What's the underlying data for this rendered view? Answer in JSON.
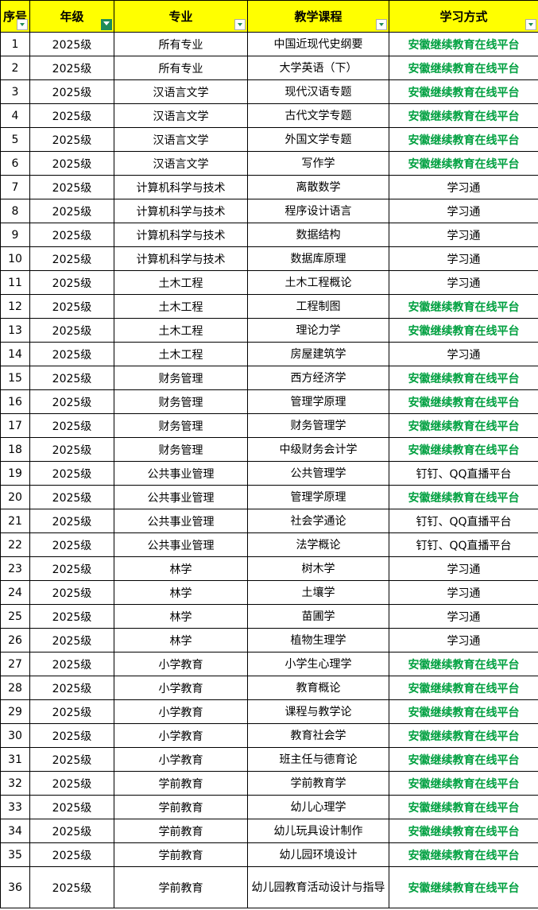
{
  "headers": [
    "序号",
    "年级",
    "专业",
    "教学课程",
    "学习方式"
  ],
  "filter_active_column": "年级",
  "accent_green": "#00a040",
  "header_bg": "#ffff00",
  "rows": [
    [
      "1",
      "2025级",
      "所有专业",
      "中国近现代史纲要",
      "安徽继续教育在线平台"
    ],
    [
      "2",
      "2025级",
      "所有专业",
      "大学英语（下）",
      "安徽继续教育在线平台"
    ],
    [
      "3",
      "2025级",
      "汉语言文学",
      "现代汉语专题",
      "安徽继续教育在线平台"
    ],
    [
      "4",
      "2025级",
      "汉语言文学",
      "古代文学专题",
      "安徽继续教育在线平台"
    ],
    [
      "5",
      "2025级",
      "汉语言文学",
      "外国文学专题",
      "安徽继续教育在线平台"
    ],
    [
      "6",
      "2025级",
      "汉语言文学",
      "写作学",
      "安徽继续教育在线平台"
    ],
    [
      "7",
      "2025级",
      "计算机科学与技术",
      "离散数学",
      "学习通"
    ],
    [
      "8",
      "2025级",
      "计算机科学与技术",
      "程序设计语言",
      "学习通"
    ],
    [
      "9",
      "2025级",
      "计算机科学与技术",
      "数据结构",
      "学习通"
    ],
    [
      "10",
      "2025级",
      "计算机科学与技术",
      "数据库原理",
      "学习通"
    ],
    [
      "11",
      "2025级",
      "土木工程",
      "土木工程概论",
      "学习通"
    ],
    [
      "12",
      "2025级",
      "土木工程",
      "工程制图",
      "安徽继续教育在线平台"
    ],
    [
      "13",
      "2025级",
      "土木工程",
      "理论力学",
      "安徽继续教育在线平台"
    ],
    [
      "14",
      "2025级",
      "土木工程",
      "房屋建筑学",
      "学习通"
    ],
    [
      "15",
      "2025级",
      "财务管理",
      "西方经济学",
      "安徽继续教育在线平台"
    ],
    [
      "16",
      "2025级",
      "财务管理",
      "管理学原理",
      "安徽继续教育在线平台"
    ],
    [
      "17",
      "2025级",
      "财务管理",
      "财务管理学",
      "安徽继续教育在线平台"
    ],
    [
      "18",
      "2025级",
      "财务管理",
      "中级财务会计学",
      "安徽继续教育在线平台"
    ],
    [
      "19",
      "2025级",
      "公共事业管理",
      "公共管理学",
      "钉钉、QQ直播平台"
    ],
    [
      "20",
      "2025级",
      "公共事业管理",
      "管理学原理",
      "安徽继续教育在线平台"
    ],
    [
      "21",
      "2025级",
      "公共事业管理",
      "社会学通论",
      "钉钉、QQ直播平台"
    ],
    [
      "22",
      "2025级",
      "公共事业管理",
      "法学概论",
      "钉钉、QQ直播平台"
    ],
    [
      "23",
      "2025级",
      "林学",
      "树木学",
      "学习通"
    ],
    [
      "24",
      "2025级",
      "林学",
      "土壤学",
      "学习通"
    ],
    [
      "25",
      "2025级",
      "林学",
      "苗圃学",
      "学习通"
    ],
    [
      "26",
      "2025级",
      "林学",
      "植物生理学",
      "学习通"
    ],
    [
      "27",
      "2025级",
      "小学教育",
      "小学生心理学",
      "安徽继续教育在线平台"
    ],
    [
      "28",
      "2025级",
      "小学教育",
      "教育概论",
      "安徽继续教育在线平台"
    ],
    [
      "29",
      "2025级",
      "小学教育",
      "课程与教学论",
      "安徽继续教育在线平台"
    ],
    [
      "30",
      "2025级",
      "小学教育",
      "教育社会学",
      "安徽继续教育在线平台"
    ],
    [
      "31",
      "2025级",
      "小学教育",
      "班主任与德育论",
      "安徽继续教育在线平台"
    ],
    [
      "32",
      "2025级",
      "学前教育",
      "学前教育学",
      "安徽继续教育在线平台"
    ],
    [
      "33",
      "2025级",
      "学前教育",
      "幼儿心理学",
      "安徽继续教育在线平台"
    ],
    [
      "34",
      "2025级",
      "学前教育",
      "幼儿玩具设计制作",
      "安徽继续教育在线平台"
    ],
    [
      "35",
      "2025级",
      "学前教育",
      "幼儿园环境设计",
      "安徽继续教育在线平台"
    ],
    [
      "36",
      "2025级",
      "学前教育",
      "幼儿园教育活动设计与指导",
      "安徽继续教育在线平台"
    ]
  ]
}
